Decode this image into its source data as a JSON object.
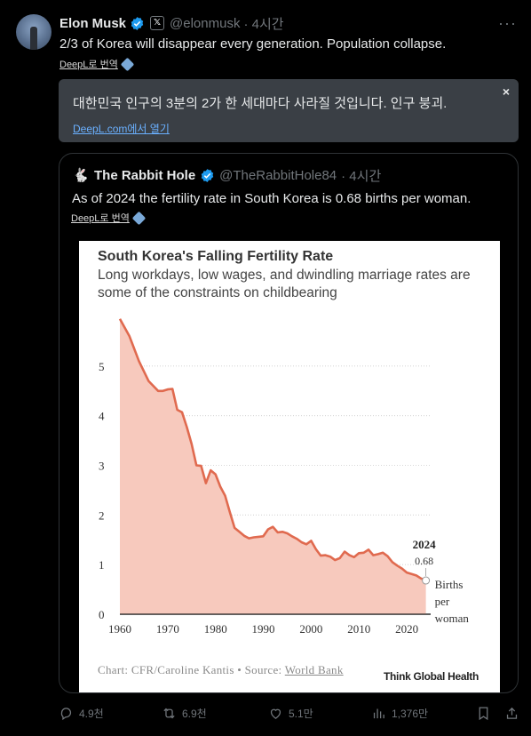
{
  "tweet": {
    "name": "Elon Musk",
    "handle": "@elonmusk",
    "time": "· 4시간",
    "text": "2/3 of Korea will disappear every generation. Population collapse.",
    "more": "···",
    "deepl_label": "DeepL로 번역",
    "translation": {
      "text": "대한민국 인구의 3분의 2가 한 세대마다 사라질 것입니다. 인구 붕괴.",
      "link": "DeepL.com에서 열기",
      "close": "×"
    }
  },
  "quote": {
    "name": "The Rabbit Hole",
    "handle": "@TheRabbitHole84",
    "time": "· 4시간",
    "text": "As of 2024 the fertility rate in South Korea is 0.68 births per woman.",
    "deepl_label": "DeepL로 번역"
  },
  "chart_image": {
    "title": "South Korea's Falling Fertility Rate",
    "subtitle": "Long workdays, low wages, and dwindling marriage rates are some of the constraints on childbearing",
    "source_prefix": "Chart: CFR/Caroline Kantis • Source: ",
    "source_link": "World Bank",
    "brand": "Think Global Health"
  },
  "chart_data": {
    "type": "area",
    "title": "South Korea's Falling Fertility Rate",
    "subtitle": "Long workdays, low wages, and dwindling marriage rates are some of the constraints on childbearing",
    "x_ticks": [
      "1960",
      "1970",
      "1980",
      "1990",
      "2000",
      "2010",
      "2020"
    ],
    "y_ticks": [
      "0",
      "1",
      "2",
      "3",
      "4",
      "5"
    ],
    "xlim": [
      1960,
      2025
    ],
    "ylim": [
      0,
      6
    ],
    "grid": true,
    "series_color": "#e06a4f",
    "fill_color": "#f7c9bd",
    "annotation": {
      "year": "2024",
      "value": "0.68",
      "label_line1": "Births",
      "label_line2": "per",
      "label_line3": "woman"
    },
    "points": [
      [
        1960,
        5.95
      ],
      [
        1962,
        5.6
      ],
      [
        1964,
        5.1
      ],
      [
        1966,
        4.7
      ],
      [
        1968,
        4.5
      ],
      [
        1969,
        4.5
      ],
      [
        1970,
        4.53
      ],
      [
        1971,
        4.54
      ],
      [
        1972,
        4.12
      ],
      [
        1973,
        4.07
      ],
      [
        1974,
        3.77
      ],
      [
        1975,
        3.43
      ],
      [
        1976,
        3.0
      ],
      [
        1977,
        2.99
      ],
      [
        1978,
        2.64
      ],
      [
        1979,
        2.9
      ],
      [
        1980,
        2.82
      ],
      [
        1981,
        2.57
      ],
      [
        1982,
        2.39
      ],
      [
        1983,
        2.06
      ],
      [
        1984,
        1.74
      ],
      [
        1985,
        1.66
      ],
      [
        1986,
        1.58
      ],
      [
        1987,
        1.53
      ],
      [
        1988,
        1.55
      ],
      [
        1989,
        1.56
      ],
      [
        1990,
        1.57
      ],
      [
        1991,
        1.71
      ],
      [
        1992,
        1.76
      ],
      [
        1993,
        1.65
      ],
      [
        1994,
        1.66
      ],
      [
        1995,
        1.63
      ],
      [
        1996,
        1.57
      ],
      [
        1997,
        1.52
      ],
      [
        1998,
        1.45
      ],
      [
        1999,
        1.41
      ],
      [
        2000,
        1.48
      ],
      [
        2001,
        1.31
      ],
      [
        2002,
        1.18
      ],
      [
        2003,
        1.19
      ],
      [
        2004,
        1.16
      ],
      [
        2005,
        1.09
      ],
      [
        2006,
        1.13
      ],
      [
        2007,
        1.26
      ],
      [
        2008,
        1.19
      ],
      [
        2009,
        1.15
      ],
      [
        2010,
        1.23
      ],
      [
        2011,
        1.24
      ],
      [
        2012,
        1.3
      ],
      [
        2013,
        1.19
      ],
      [
        2014,
        1.21
      ],
      [
        2015,
        1.24
      ],
      [
        2016,
        1.17
      ],
      [
        2017,
        1.05
      ],
      [
        2018,
        0.98
      ],
      [
        2019,
        0.92
      ],
      [
        2020,
        0.84
      ],
      [
        2021,
        0.81
      ],
      [
        2022,
        0.78
      ],
      [
        2023,
        0.72
      ],
      [
        2024,
        0.68
      ]
    ]
  },
  "actions": {
    "replies": "4.9천",
    "retweets": "6.9천",
    "likes": "5.1만",
    "views": "1,376만"
  }
}
